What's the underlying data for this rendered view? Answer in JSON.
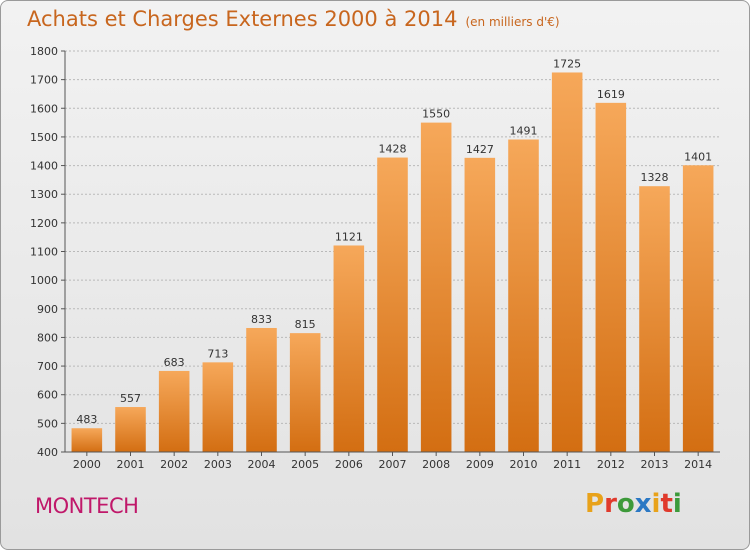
{
  "header": {
    "title": "Achats et Charges Externes 2000 à 2014",
    "subtitle": "(en milliers d'€)"
  },
  "footer": {
    "commune": "MONTECH",
    "logo_letters": [
      "P",
      "r",
      "o",
      "x",
      "i",
      "t",
      "i"
    ],
    "logo_colors": [
      "#e8a21a",
      "#e03a2c",
      "#3d9a3a",
      "#2b78c4",
      "#e8a21a",
      "#e03a2c",
      "#3d9a3a"
    ]
  },
  "colors": {
    "bar_light": "#f6a85a",
    "bar_dark": "#d36e12",
    "title": "#c8661e",
    "commune": "#c0186a"
  },
  "chart_data": {
    "type": "bar",
    "title": "Achats et Charges Externes 2000 à 2014",
    "subtitle": "(en milliers d'€)",
    "categories": [
      "2000",
      "2001",
      "2002",
      "2003",
      "2004",
      "2005",
      "2006",
      "2007",
      "2008",
      "2009",
      "2010",
      "2011",
      "2012",
      "2013",
      "2014"
    ],
    "values": [
      483,
      557,
      683,
      713,
      833,
      815,
      1121,
      1428,
      1550,
      1427,
      1491,
      1725,
      1619,
      1328,
      1401
    ],
    "ylim": [
      400,
      1800
    ],
    "yticks": [
      400,
      500,
      600,
      700,
      800,
      900,
      1000,
      1100,
      1200,
      1300,
      1400,
      1500,
      1600,
      1700,
      1800
    ],
    "grid": true,
    "xlabel": "",
    "ylabel": ""
  }
}
